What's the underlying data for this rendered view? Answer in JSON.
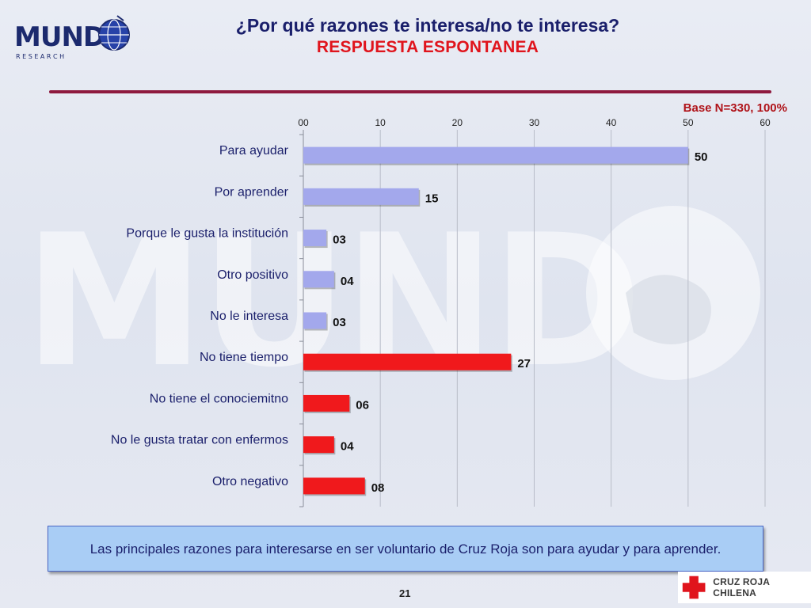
{
  "header": {
    "title": "¿Por qué razones te interesa/no te interesa?",
    "subtitle": "RESPUESTA ESPONTANEA"
  },
  "logo": {
    "name": "MUND",
    "tagline": "R E S E A R C H"
  },
  "base_note": "Base N=330, 100%",
  "colors": {
    "positive": "#a3a8ec",
    "negative": "#f0191c",
    "label": "#1a1f6b",
    "grid": "#b8bcc8",
    "title_red": "#e0141c"
  },
  "chart_data": {
    "type": "bar",
    "orientation": "horizontal",
    "categories": [
      "Para ayudar",
      "Por aprender",
      "Porque le gusta la institución",
      "Otro positivo",
      "No le interesa",
      "No tiene tiempo",
      "No tiene el conociemitno",
      "No le gusta tratar con enfermos",
      "Otro negativo"
    ],
    "values": [
      50,
      15,
      3,
      4,
      3,
      27,
      6,
      4,
      8
    ],
    "value_labels": [
      "50",
      "15",
      "03",
      "04",
      "03",
      "27",
      "06",
      "04",
      "08"
    ],
    "bar_colors": [
      "#a3a8ec",
      "#a3a8ec",
      "#a3a8ec",
      "#a3a8ec",
      "#a3a8ec",
      "#f0191c",
      "#f0191c",
      "#f0191c",
      "#f0191c"
    ],
    "xlim": [
      0,
      60
    ],
    "xticks": [
      0,
      10,
      20,
      30,
      40,
      50,
      60
    ],
    "xtick_labels": [
      "00",
      "10",
      "20",
      "30",
      "40",
      "50",
      "60"
    ],
    "axis_position": "top",
    "grid": true,
    "legend": "none"
  },
  "summary": "Las principales razones para interesarse en ser voluntario de Cruz Roja son para ayudar y para aprender.",
  "page_number": "21",
  "footer_logo": {
    "text": "CRUZ ROJA CHILENA",
    "icon": "red-cross-icon"
  }
}
